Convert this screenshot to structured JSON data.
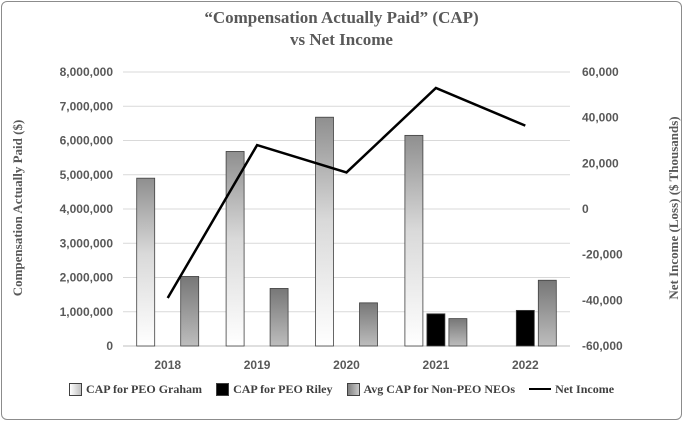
{
  "chart_data": {
    "type": "bar",
    "title": "“Compensation Actually Paid” (CAP)",
    "subtitle": "vs Net Income",
    "ylabel": "Compensation Actually Paid ($)",
    "y2label": "Net Income (Loss) ($ Thousands)",
    "categories": [
      "2018",
      "2019",
      "2020",
      "2021",
      "2022"
    ],
    "ylim": [
      0,
      8000000
    ],
    "y2lim": [
      -60000,
      60000
    ],
    "yticks": [
      "0",
      "1,000,000",
      "2,000,000",
      "3,000,000",
      "4,000,000",
      "5,000,000",
      "6,000,000",
      "7,000,000",
      "8,000,000"
    ],
    "y2ticks": [
      "-60,000",
      "-40,000",
      "-20,000",
      "0",
      "20,000",
      "40,000",
      "60,000"
    ],
    "series": [
      {
        "name": "CAP for PEO Graham",
        "kind": "bar",
        "values": [
          4900000,
          5680000,
          6680000,
          6150000,
          null
        ],
        "color": "#bfbfbf"
      },
      {
        "name": "CAP for PEO Riley",
        "kind": "bar",
        "values": [
          null,
          null,
          null,
          940000,
          1040000
        ],
        "color": "#000000"
      },
      {
        "name": "Avg CAP for Non-PEO NEOs",
        "kind": "bar",
        "values": [
          2030000,
          1680000,
          1260000,
          800000,
          1920000
        ],
        "color": "#9a9a9a"
      },
      {
        "name": "Net Income",
        "kind": "line",
        "axis": "right",
        "values": [
          -39000,
          28000,
          16000,
          53000,
          36500
        ],
        "color": "#000000"
      }
    ],
    "grid": true,
    "legend_position": "bottom"
  }
}
